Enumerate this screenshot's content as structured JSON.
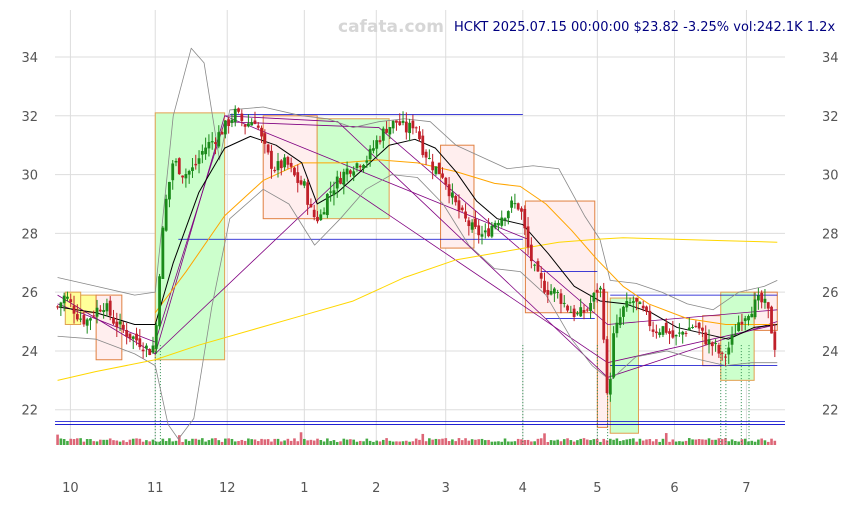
{
  "header": {
    "watermark": "cafata.com",
    "title": "HCKT 2025.07.15 00:00:00 $23.82 -3.25% vol:242.1K 1.2x"
  },
  "colors": {
    "up": "#1a8a1a",
    "down": "#c0202a",
    "grid": "#dddddd",
    "ma_short": "#000000",
    "ma_mid": "#ffa500",
    "ma_long": "#ffd700",
    "band": "#888888",
    "channel": "#800080",
    "level": "#0000cc",
    "up_box": "#ccffcc",
    "down_box": "#ffeeee",
    "flat_box": "#ffff99"
  },
  "chart_data": {
    "type": "candlestick",
    "x_ticks": [
      {
        "label": "10",
        "x": 0
      },
      {
        "label": "11",
        "x": 33
      },
      {
        "label": "12",
        "x": 61
      },
      {
        "label": "1",
        "x": 91
      },
      {
        "label": "2",
        "x": 119
      },
      {
        "label": "3",
        "x": 146
      },
      {
        "label": "4",
        "x": 176
      },
      {
        "label": "5",
        "x": 205
      },
      {
        "label": "6",
        "x": 235
      },
      {
        "label": "7",
        "x": 263
      }
    ],
    "x_range": [
      -6,
      278
    ],
    "ylim": [
      20.8,
      35.6
    ],
    "y_ticks": [
      22,
      24,
      26,
      28,
      30,
      32,
      34
    ],
    "grid": true,
    "anchors": [
      [
        -5,
        25.5
      ],
      [
        -2,
        25.9
      ],
      [
        0,
        25.6
      ],
      [
        3,
        25.2
      ],
      [
        6,
        25.0
      ],
      [
        10,
        25.4
      ],
      [
        13,
        25.6
      ],
      [
        17,
        25.0
      ],
      [
        22,
        24.6
      ],
      [
        27,
        24.3
      ],
      [
        31,
        24.0
      ],
      [
        33,
        24.3
      ],
      [
        35,
        27.2
      ],
      [
        37,
        29.0
      ],
      [
        40,
        30.5
      ],
      [
        44,
        30.0
      ],
      [
        48,
        30.2
      ],
      [
        52,
        30.9
      ],
      [
        56,
        31.2
      ],
      [
        60,
        31.6
      ],
      [
        64,
        32.1
      ],
      [
        68,
        31.7
      ],
      [
        72,
        31.9
      ],
      [
        75,
        31.0
      ],
      [
        79,
        30.2
      ],
      [
        84,
        30.4
      ],
      [
        88,
        29.8
      ],
      [
        91,
        29.6
      ],
      [
        94,
        28.6
      ],
      [
        97,
        28.5
      ],
      [
        100,
        29.3
      ],
      [
        104,
        29.8
      ],
      [
        108,
        30.2
      ],
      [
        112,
        30.4
      ],
      [
        116,
        30.6
      ],
      [
        119,
        31.1
      ],
      [
        123,
        31.6
      ],
      [
        127,
        31.8
      ],
      [
        131,
        31.5
      ],
      [
        134,
        31.8
      ],
      [
        137,
        30.9
      ],
      [
        141,
        30.3
      ],
      [
        145,
        30.0
      ],
      [
        149,
        29.1
      ],
      [
        153,
        28.5
      ],
      [
        157,
        28.1
      ],
      [
        161,
        27.9
      ],
      [
        165,
        28.4
      ],
      [
        169,
        28.7
      ],
      [
        172,
        29.0
      ],
      [
        175,
        28.9
      ],
      [
        178,
        27.5
      ],
      [
        181,
        26.6
      ],
      [
        185,
        26.1
      ],
      [
        189,
        26.0
      ],
      [
        193,
        25.5
      ],
      [
        197,
        25.2
      ],
      [
        201,
        25.4
      ],
      [
        204,
        25.9
      ],
      [
        206,
        26.3
      ],
      [
        208,
        24.0
      ],
      [
        209,
        21.9
      ],
      [
        211,
        24.4
      ],
      [
        215,
        25.4
      ],
      [
        219,
        25.7
      ],
      [
        223,
        25.3
      ],
      [
        227,
        24.7
      ],
      [
        231,
        24.8
      ],
      [
        235,
        24.4
      ],
      [
        239,
        24.7
      ],
      [
        243,
        24.9
      ],
      [
        247,
        24.4
      ],
      [
        251,
        24.1
      ],
      [
        254,
        23.7
      ],
      [
        257,
        24.3
      ],
      [
        260,
        25.0
      ],
      [
        264,
        25.4
      ],
      [
        268,
        25.7
      ],
      [
        271,
        25.5
      ],
      [
        273,
        24.6
      ],
      [
        275,
        23.8
      ]
    ],
    "ma_short": [
      [
        -5,
        25.5
      ],
      [
        10,
        25.3
      ],
      [
        25,
        24.9
      ],
      [
        33,
        24.9
      ],
      [
        40,
        27.0
      ],
      [
        50,
        29.4
      ],
      [
        60,
        30.9
      ],
      [
        70,
        31.3
      ],
      [
        80,
        31.0
      ],
      [
        90,
        30.4
      ],
      [
        96,
        29.0
      ],
      [
        104,
        29.4
      ],
      [
        114,
        30.2
      ],
      [
        124,
        31.0
      ],
      [
        134,
        31.2
      ],
      [
        142,
        30.9
      ],
      [
        150,
        30.1
      ],
      [
        158,
        29.1
      ],
      [
        166,
        28.5
      ],
      [
        176,
        28.3
      ],
      [
        186,
        27.3
      ],
      [
        196,
        26.2
      ],
      [
        206,
        25.7
      ],
      [
        216,
        25.6
      ],
      [
        226,
        25.3
      ],
      [
        236,
        24.8
      ],
      [
        246,
        24.6
      ],
      [
        256,
        24.4
      ],
      [
        266,
        24.8
      ],
      [
        275,
        24.9
      ]
    ],
    "ma_mid": [
      [
        33,
        25.3
      ],
      [
        45,
        26.7
      ],
      [
        60,
        28.6
      ],
      [
        75,
        29.8
      ],
      [
        90,
        30.4
      ],
      [
        105,
        30.4
      ],
      [
        120,
        30.5
      ],
      [
        135,
        30.4
      ],
      [
        150,
        30.1
      ],
      [
        165,
        29.7
      ],
      [
        175,
        29.6
      ],
      [
        185,
        29.0
      ],
      [
        195,
        28.1
      ],
      [
        205,
        27.1
      ],
      [
        215,
        26.2
      ],
      [
        225,
        25.6
      ],
      [
        240,
        25.1
      ],
      [
        255,
        24.9
      ],
      [
        275,
        24.9
      ]
    ],
    "ma_long": [
      [
        -5,
        23.0
      ],
      [
        10,
        23.3
      ],
      [
        33,
        23.7
      ],
      [
        50,
        24.2
      ],
      [
        70,
        24.7
      ],
      [
        90,
        25.2
      ],
      [
        110,
        25.7
      ],
      [
        130,
        26.5
      ],
      [
        150,
        27.1
      ],
      [
        170,
        27.4
      ],
      [
        190,
        27.7
      ],
      [
        205,
        27.8
      ],
      [
        215,
        27.85
      ],
      [
        235,
        27.8
      ],
      [
        255,
        27.75
      ],
      [
        275,
        27.7
      ]
    ],
    "band_upper": [
      [
        -5,
        26.5
      ],
      [
        10,
        26.2
      ],
      [
        25,
        25.9
      ],
      [
        33,
        26.0
      ],
      [
        40,
        32.0
      ],
      [
        47,
        34.3
      ],
      [
        52,
        33.8
      ],
      [
        58,
        30.5
      ],
      [
        62,
        32.2
      ],
      [
        75,
        32.3
      ],
      [
        90,
        32.0
      ],
      [
        100,
        31.9
      ],
      [
        110,
        31.6
      ],
      [
        120,
        31.8
      ],
      [
        130,
        31.9
      ],
      [
        140,
        31.8
      ],
      [
        150,
        31.0
      ],
      [
        160,
        30.6
      ],
      [
        170,
        30.2
      ],
      [
        180,
        30.3
      ],
      [
        190,
        30.2
      ],
      [
        200,
        28.6
      ],
      [
        206,
        27.8
      ],
      [
        210,
        26.4
      ],
      [
        220,
        26.3
      ],
      [
        230,
        26.0
      ],
      [
        240,
        25.6
      ],
      [
        250,
        25.4
      ],
      [
        260,
        26.0
      ],
      [
        270,
        26.2
      ],
      [
        275,
        26.4
      ]
    ],
    "band_lower": [
      [
        -5,
        24.5
      ],
      [
        10,
        24.4
      ],
      [
        25,
        23.9
      ],
      [
        33,
        23.5
      ],
      [
        38,
        21.5
      ],
      [
        42,
        21.0
      ],
      [
        48,
        21.7
      ],
      [
        55,
        25.5
      ],
      [
        62,
        28.5
      ],
      [
        75,
        29.5
      ],
      [
        85,
        29.0
      ],
      [
        95,
        27.6
      ],
      [
        105,
        28.5
      ],
      [
        115,
        29.5
      ],
      [
        125,
        30.0
      ],
      [
        135,
        29.9
      ],
      [
        145,
        29.0
      ],
      [
        155,
        27.6
      ],
      [
        165,
        26.8
      ],
      [
        175,
        26.7
      ],
      [
        185,
        25.9
      ],
      [
        195,
        24.4
      ],
      [
        203,
        23.5
      ],
      [
        210,
        23.0
      ],
      [
        220,
        23.8
      ],
      [
        232,
        24.0
      ],
      [
        245,
        23.7
      ],
      [
        255,
        23.5
      ],
      [
        265,
        23.6
      ],
      [
        275,
        23.6
      ]
    ],
    "zones": [
      {
        "type": "flat",
        "x0": -2,
        "x1": 4,
        "y0": 24.9,
        "y1": 26.0
      },
      {
        "type": "flat",
        "x0": 4,
        "x1": 10,
        "y0": 25.3,
        "y1": 25.9
      },
      {
        "type": "down",
        "x0": 10,
        "x1": 20,
        "y0": 23.7,
        "y1": 25.9
      },
      {
        "type": "up",
        "x0": 33,
        "x1": 60,
        "y0": 23.7,
        "y1": 32.1
      },
      {
        "type": "down",
        "x0": 75,
        "x1": 96,
        "y0": 28.5,
        "y1": 32.0
      },
      {
        "type": "up",
        "x0": 96,
        "x1": 124,
        "y0": 28.5,
        "y1": 31.9
      },
      {
        "type": "down",
        "x0": 144,
        "x1": 157,
        "y0": 27.5,
        "y1": 31.0
      },
      {
        "type": "down",
        "x0": 177,
        "x1": 204,
        "y0": 25.3,
        "y1": 29.1
      },
      {
        "type": "down",
        "x0": 205,
        "x1": 209,
        "y0": 21.4,
        "y1": 26.0
      },
      {
        "type": "up",
        "x0": 210,
        "x1": 221,
        "y0": 21.2,
        "y1": 25.8
      },
      {
        "type": "down",
        "x0": 246,
        "x1": 253,
        "y0": 23.5,
        "y1": 25.2
      },
      {
        "type": "up",
        "x0": 253,
        "x1": 266,
        "y0": 23.0,
        "y1": 26.0
      },
      {
        "type": "down",
        "x0": 266,
        "x1": 275,
        "y0": 24.7,
        "y1": 26.0
      }
    ],
    "channels": [
      [
        [
          -5,
          25.9
        ],
        [
          33,
          23.9
        ],
        [
          60,
          32.0
        ],
        [
          104,
          31.8
        ],
        [
          209,
          23.1
        ],
        [
          275,
          25.0
        ]
      ],
      [
        [
          -5,
          25.6
        ],
        [
          33,
          24.3
        ],
        [
          60,
          31.8
        ],
        [
          120,
          31.6
        ],
        [
          209,
          24.9
        ],
        [
          275,
          25.4
        ]
      ],
      [
        [
          33,
          23.9
        ],
        [
          104,
          29.8
        ],
        [
          209,
          23.6
        ],
        [
          275,
          24.9
        ]
      ],
      [
        [
          60,
          32.0
        ],
        [
          178,
          27.8
        ]
      ]
    ],
    "levels": [
      {
        "x0": 42,
        "x1": 176,
        "y": 27.8
      },
      {
        "x0": 62,
        "x1": 176,
        "y": 32.05
      },
      {
        "x0": 183,
        "x1": 205,
        "y": 26.7
      },
      {
        "x0": 185,
        "x1": 204,
        "y": 25.1
      },
      {
        "x0": 210,
        "x1": 275,
        "y": 25.9
      },
      {
        "x0": 210,
        "x1": 275,
        "y": 23.5
      },
      {
        "x0": -6,
        "x1": 278,
        "y": 21.5
      },
      {
        "x0": -6,
        "x1": 278,
        "y": 21.6
      }
    ],
    "markers": [
      33,
      35,
      176,
      205,
      209,
      253,
      255,
      261,
      264
    ]
  }
}
